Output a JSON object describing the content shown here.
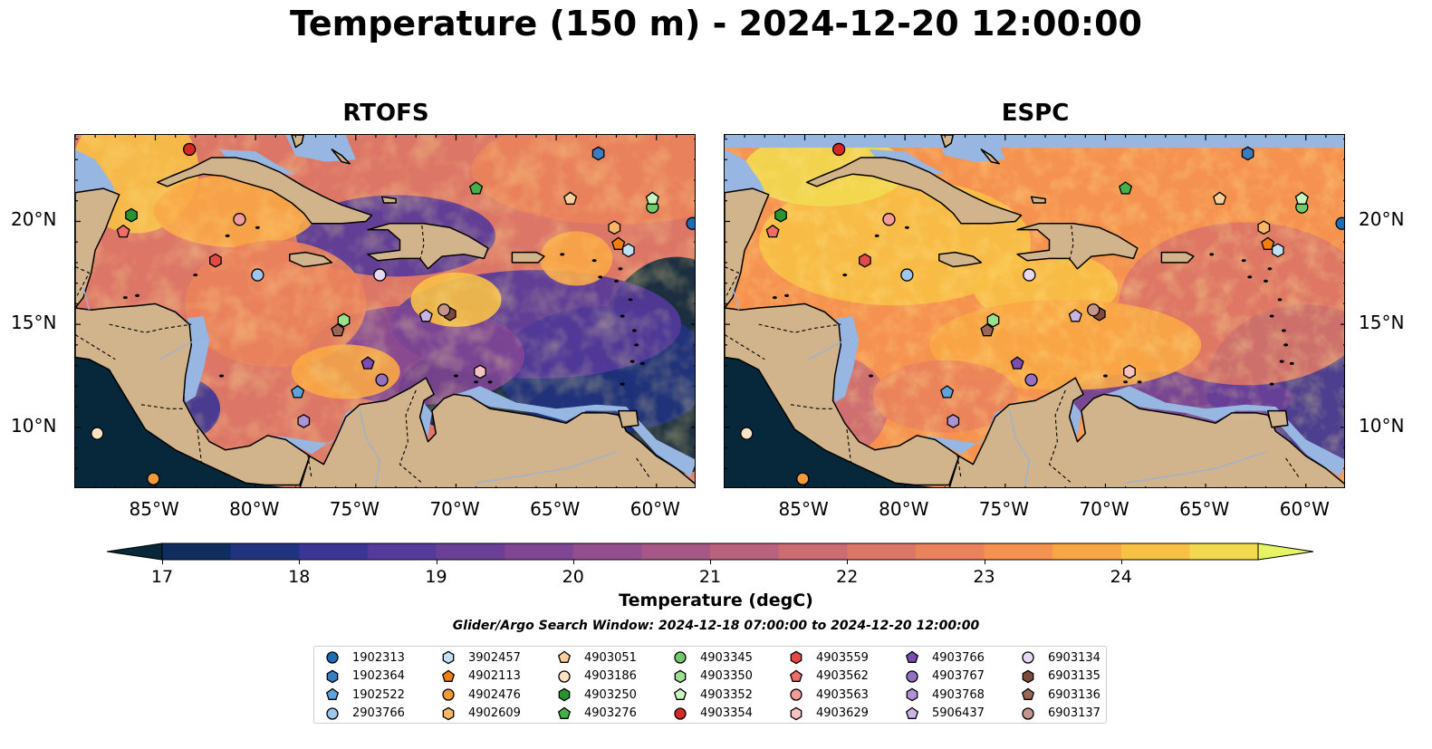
{
  "suptitle": "Temperature (150 m) - 2024-12-20 12:00:00",
  "panels": [
    {
      "title": "RTOFS"
    },
    {
      "title": "ESPC"
    }
  ],
  "map_extent": {
    "lon_min": -89,
    "lon_max": -58,
    "lat_min": 7,
    "lat_max": 24.2
  },
  "lon_ticks": [
    "85°W",
    "80°W",
    "75°W",
    "70°W",
    "65°W",
    "60°W"
  ],
  "lat_ticks": [
    "20°N",
    "15°N",
    "10°N"
  ],
  "colorbar": {
    "label": "Temperature (degC)",
    "ticks": [
      "17",
      "18",
      "19",
      "20",
      "21",
      "22",
      "23",
      "24"
    ],
    "min": 17,
    "max": 24.5,
    "step": 0.5,
    "colors": [
      "#07273b",
      "#0d2e5e",
      "#21337f",
      "#3b3595",
      "#543a9a",
      "#6b3f98",
      "#804694",
      "#934e8e",
      "#a65786",
      "#b9617d",
      "#cb6b72",
      "#dc7667",
      "#ea835b",
      "#f5924f",
      "#f9a745",
      "#f8c045",
      "#f2da50",
      "#e6f463"
    ],
    "extend": "both"
  },
  "search_window": "Glider/Argo Search Window: 2024-12-18 07:00:00 to 2024-12-20 12:00:00",
  "colors": {
    "land": "#d2b48c",
    "ocean_nodata": "#97b6e1",
    "rivers": "#9bb0d6",
    "deep": "#07273b"
  },
  "legend": [
    {
      "id": "1902313",
      "marker": "circle",
      "color": "#1f6db5"
    },
    {
      "id": "1902364",
      "marker": "hexagon",
      "color": "#3a7cc0"
    },
    {
      "id": "1902522",
      "marker": "pentagon",
      "color": "#5fa3dc"
    },
    {
      "id": "2903766",
      "marker": "circle",
      "color": "#9ec7ee"
    },
    {
      "id": "3902457",
      "marker": "hexagon",
      "color": "#bfe0f5"
    },
    {
      "id": "4902113",
      "marker": "pentagon",
      "color": "#f07f10"
    },
    {
      "id": "4902476",
      "marker": "circle",
      "color": "#f59a3a"
    },
    {
      "id": "4902609",
      "marker": "hexagon",
      "color": "#fbb567"
    },
    {
      "id": "4903051",
      "marker": "pentagon",
      "color": "#fdcf9a"
    },
    {
      "id": "4903186",
      "marker": "circle",
      "color": "#fde3c3"
    },
    {
      "id": "4903250",
      "marker": "hexagon",
      "color": "#27952f"
    },
    {
      "id": "4903276",
      "marker": "pentagon",
      "color": "#44b04a"
    },
    {
      "id": "4903345",
      "marker": "circle",
      "color": "#6fca6a"
    },
    {
      "id": "4903350",
      "marker": "hexagon",
      "color": "#9ae08e"
    },
    {
      "id": "4903352",
      "marker": "pentagon",
      "color": "#c6f5bd"
    },
    {
      "id": "4903354",
      "marker": "circle",
      "color": "#d42a24"
    },
    {
      "id": "4903559",
      "marker": "hexagon",
      "color": "#e24a45"
    },
    {
      "id": "4903562",
      "marker": "pentagon",
      "color": "#ec6d6a"
    },
    {
      "id": "4903563",
      "marker": "circle",
      "color": "#f49a98"
    },
    {
      "id": "4903629",
      "marker": "hexagon",
      "color": "#f9c2c1"
    },
    {
      "id": "4903766",
      "marker": "pentagon",
      "color": "#7b4cb2"
    },
    {
      "id": "4903767",
      "marker": "circle",
      "color": "#9470c3"
    },
    {
      "id": "4903768",
      "marker": "hexagon",
      "color": "#ae92d3"
    },
    {
      "id": "5906437",
      "marker": "pentagon",
      "color": "#c8b5e5"
    },
    {
      "id": "6903134",
      "marker": "circle",
      "color": "#e7d8f4"
    },
    {
      "id": "6903135",
      "marker": "hexagon",
      "color": "#7d4b3e"
    },
    {
      "id": "6903136",
      "marker": "pentagon",
      "color": "#9b6656"
    },
    {
      "id": "6903137",
      "marker": "circle",
      "color": "#c5948a"
    }
  ],
  "floats": [
    {
      "id": "1902313",
      "lon": -58.2,
      "lat": 19.9
    },
    {
      "id": "1902364",
      "lon": -62.9,
      "lat": 23.3
    },
    {
      "id": "1902522",
      "lon": -77.9,
      "lat": 11.7
    },
    {
      "id": "2903766",
      "lon": -79.9,
      "lat": 17.4
    },
    {
      "id": "3902457",
      "lon": -61.4,
      "lat": 18.6
    },
    {
      "id": "4902113",
      "lon": -61.9,
      "lat": 18.9
    },
    {
      "id": "4902476",
      "lon": -85.1,
      "lat": 7.5
    },
    {
      "id": "4902609",
      "lon": -62.1,
      "lat": 19.7
    },
    {
      "id": "4903051",
      "lon": -64.3,
      "lat": 21.1
    },
    {
      "id": "4903186",
      "lon": -87.9,
      "lat": 9.7
    },
    {
      "id": "4903250",
      "lon": -86.2,
      "lat": 20.3
    },
    {
      "id": "4903276",
      "lon": -69.0,
      "lat": 21.6
    },
    {
      "id": "4903345",
      "lon": -60.2,
      "lat": 20.7
    },
    {
      "id": "4903350",
      "lon": -75.6,
      "lat": 15.2
    },
    {
      "id": "4903352",
      "lon": -60.2,
      "lat": 21.1
    },
    {
      "id": "4903354",
      "lon": -83.3,
      "lat": 23.5
    },
    {
      "id": "4903559",
      "lon": -82.0,
      "lat": 18.1
    },
    {
      "id": "4903562",
      "lon": -86.6,
      "lat": 19.5
    },
    {
      "id": "4903563",
      "lon": -80.8,
      "lat": 20.1
    },
    {
      "id": "4903629",
      "lon": -68.8,
      "lat": 12.7
    },
    {
      "id": "4903766",
      "lon": -74.4,
      "lat": 13.1
    },
    {
      "id": "4903767",
      "lon": -73.7,
      "lat": 12.3
    },
    {
      "id": "4903768",
      "lon": -77.6,
      "lat": 10.3
    },
    {
      "id": "5906437",
      "lon": -71.5,
      "lat": 15.4
    },
    {
      "id": "6903134",
      "lon": -73.8,
      "lat": 17.4
    },
    {
      "id": "6903135",
      "lon": -70.3,
      "lat": 15.5
    },
    {
      "id": "6903136",
      "lon": -75.9,
      "lat": 14.7
    },
    {
      "id": "6903137",
      "lon": -70.6,
      "lat": 15.7
    }
  ]
}
